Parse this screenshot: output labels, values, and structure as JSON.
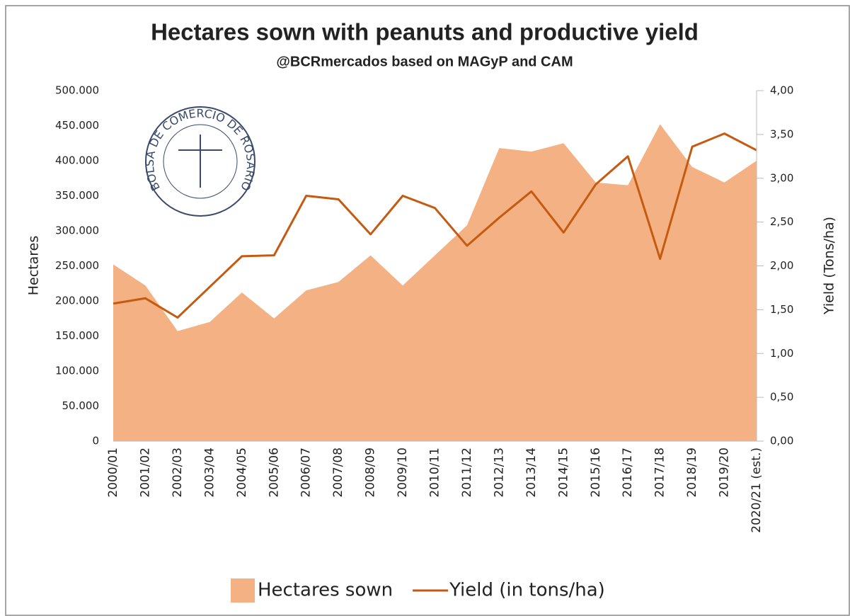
{
  "chart_data": {
    "type": "area_line",
    "title": "Hectares sown with peanuts and productive yield",
    "subtitle": "@BCRmercados based on MAGyP and CAM",
    "logo_text": "BOLSA DE COMERCIO DE ROSARIO",
    "y_label": "Hectares",
    "y2_label": "Yield (Tons/ha)",
    "categories": [
      "2000/01",
      "2001/02",
      "2002/03",
      "2003/04",
      "2004/05",
      "2005/06",
      "2006/07",
      "2007/08",
      "2008/09",
      "2009/10",
      "2010/11",
      "2011/12",
      "2012/13",
      "2013/14",
      "2014/15",
      "2015/16",
      "2016/17",
      "2017/18",
      "2018/19",
      "2019/20",
      "2020/21 (est.)"
    ],
    "series": [
      {
        "name": "Hectares sown",
        "color": "#f4b183",
        "kind": "area",
        "values": [
          252000,
          222000,
          157000,
          170000,
          212000,
          175000,
          215000,
          227000,
          265000,
          222000,
          265000,
          308000,
          418000,
          413000,
          425000,
          369000,
          365000,
          452000,
          391000,
          369000,
          400000
        ]
      },
      {
        "name": "Yield (in tons/ha)",
        "color": "#c55a11",
        "kind": "line",
        "axis": "y2",
        "values": [
          1.57,
          1.63,
          1.41,
          1.76,
          2.11,
          2.12,
          2.8,
          2.76,
          2.36,
          2.8,
          2.66,
          2.23,
          2.55,
          2.85,
          2.38,
          2.93,
          3.25,
          2.08,
          3.36,
          3.51,
          3.32
        ]
      }
    ],
    "ylim": [
      0,
      500000
    ],
    "yticks": [
      0,
      {
        "value": 50000,
        "label": "50.000"
      },
      {
        "value": 100000,
        "label": "100.000"
      },
      {
        "value": 150000,
        "label": "150.000"
      },
      {
        "value": 200000,
        "label": "200.000"
      },
      {
        "value": 250000,
        "label": "250.000"
      },
      {
        "value": 300000,
        "label": "300.000"
      },
      {
        "value": 350000,
        "label": "350.000"
      },
      {
        "value": 400000,
        "label": "400.000"
      },
      {
        "value": 450000,
        "label": "450.000"
      },
      {
        "value": 500000,
        "label": "500.000"
      }
    ],
    "y2lim": [
      0,
      4
    ],
    "y2ticks": [
      {
        "value": 0,
        "label": "0,00"
      },
      {
        "value": 0.5,
        "label": "0,50"
      },
      {
        "value": 1,
        "label": "1,00"
      },
      {
        "value": 1.5,
        "label": "1,50"
      },
      {
        "value": 2,
        "label": "2,00"
      },
      {
        "value": 2.5,
        "label": "2,50"
      },
      {
        "value": 3,
        "label": "3,00"
      },
      {
        "value": 3.5,
        "label": "3,50"
      },
      {
        "value": 4,
        "label": "4,00"
      }
    ],
    "grid": false,
    "legend": "bottom"
  }
}
